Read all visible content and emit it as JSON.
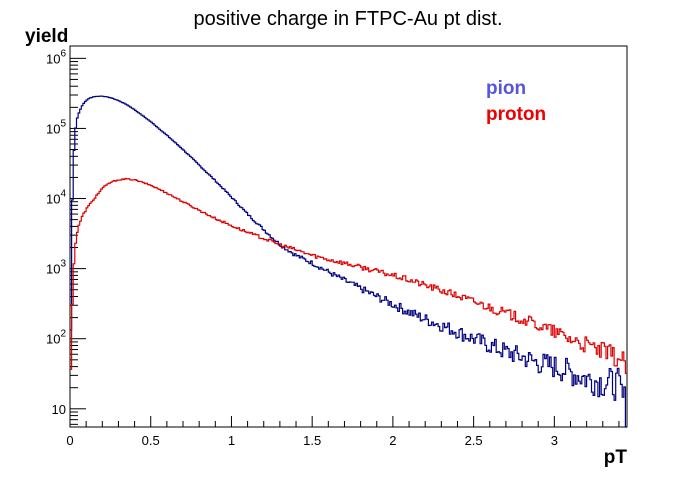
{
  "chart_data": {
    "type": "line",
    "title": "positive charge in FTPC-Au pt dist.",
    "xlabel": "pT",
    "ylabel": "yield",
    "xlim": [
      0,
      3.45
    ],
    "ylim": [
      5.5,
      1500000
    ],
    "yscale": "log",
    "grid": false,
    "legend_position": "top-right",
    "x_ticks": [
      {
        "value": 0,
        "label": "0"
      },
      {
        "value": 0.5,
        "label": "0.5"
      },
      {
        "value": 1,
        "label": "1"
      },
      {
        "value": 1.5,
        "label": "1.5"
      },
      {
        "value": 2,
        "label": "2"
      },
      {
        "value": 2.5,
        "label": "2.5"
      },
      {
        "value": 3,
        "label": "3"
      }
    ],
    "y_ticks": [
      {
        "value": 10,
        "mantissa": "10",
        "exponent": ""
      },
      {
        "value": 100,
        "mantissa": "10",
        "exponent": "2"
      },
      {
        "value": 1000,
        "mantissa": "10",
        "exponent": "3"
      },
      {
        "value": 10000,
        "mantissa": "10",
        "exponent": "4"
      },
      {
        "value": 100000,
        "mantissa": "10",
        "exponent": "5"
      },
      {
        "value": 1000000,
        "mantissa": "10",
        "exponent": "6"
      }
    ],
    "series": [
      {
        "name": "pion",
        "color": "#000080",
        "legend_color": "#5555dd",
        "x": [
          0.0,
          0.01,
          0.02,
          0.03,
          0.04,
          0.06,
          0.08,
          0.1,
          0.12,
          0.15,
          0.2,
          0.25,
          0.3,
          0.35,
          0.4,
          0.5,
          0.6,
          0.7,
          0.8,
          0.9,
          1.0,
          1.1,
          1.2,
          1.3,
          1.4,
          1.5,
          1.6,
          1.7,
          1.8,
          1.9,
          2.0,
          2.1,
          2.2,
          2.3,
          2.4,
          2.5,
          2.6,
          2.7,
          2.8,
          2.9,
          3.0,
          3.1,
          3.2,
          3.3,
          3.4,
          3.45
        ],
        "values": [
          6,
          3000,
          30000,
          80000,
          130000,
          180000,
          220000,
          250000,
          270000,
          285000,
          290000,
          275000,
          250000,
          220000,
          185000,
          125000,
          80000,
          50000,
          30000,
          18000,
          10500,
          6000,
          3600,
          2200,
          1550,
          1200,
          900,
          680,
          520,
          400,
          310,
          240,
          190,
          155,
          125,
          100,
          80,
          65,
          55,
          45,
          40,
          33,
          27,
          24,
          22,
          8
        ]
      },
      {
        "name": "proton",
        "color": "#dd0000",
        "legend_color": "#ee0000",
        "x": [
          0.0,
          0.01,
          0.02,
          0.03,
          0.04,
          0.06,
          0.08,
          0.1,
          0.15,
          0.2,
          0.25,
          0.3,
          0.35,
          0.4,
          0.5,
          0.6,
          0.7,
          0.8,
          0.9,
          1.0,
          1.1,
          1.2,
          1.3,
          1.4,
          1.5,
          1.6,
          1.7,
          1.8,
          1.9,
          2.0,
          2.1,
          2.2,
          2.3,
          2.4,
          2.5,
          2.6,
          2.7,
          2.8,
          2.9,
          3.0,
          3.1,
          3.2,
          3.3,
          3.4,
          3.45
        ],
        "values": [
          6,
          150,
          800,
          1800,
          3000,
          4500,
          5800,
          7000,
          10000,
          14000,
          17000,
          18500,
          19000,
          18500,
          15500,
          12000,
          9000,
          6800,
          5200,
          4100,
          3300,
          2700,
          2200,
          1850,
          1550,
          1350,
          1200,
          1050,
          920,
          800,
          690,
          580,
          490,
          410,
          340,
          280,
          230,
          190,
          155,
          125,
          100,
          80,
          65,
          52,
          40
        ]
      }
    ]
  }
}
